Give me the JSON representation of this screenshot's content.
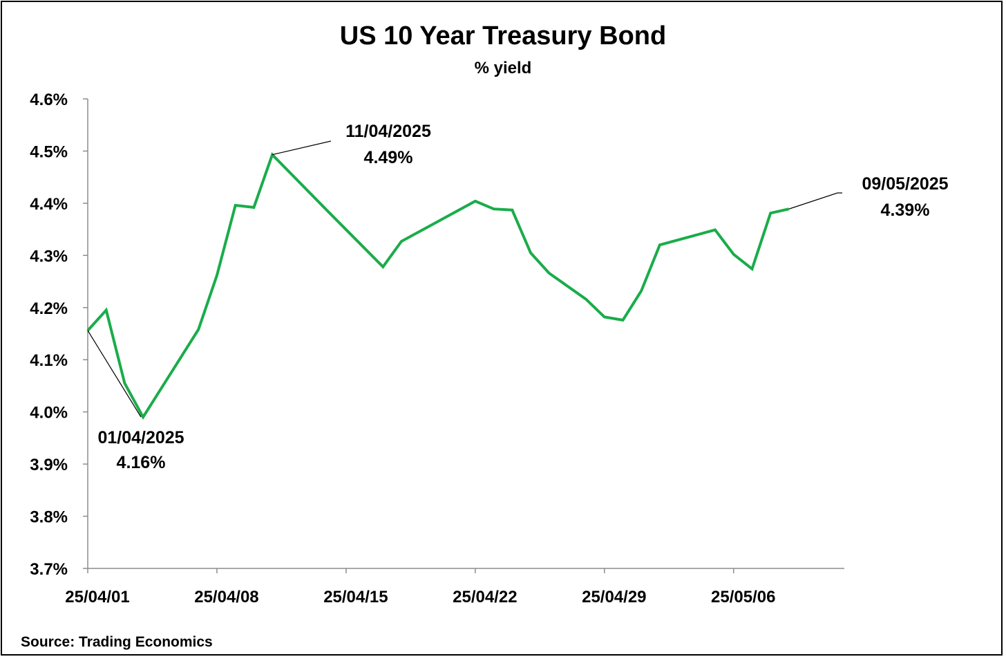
{
  "chart_data": {
    "type": "line",
    "title": "US 10 Year Treasury Bond",
    "subtitle": "% yield",
    "source": "Source: Trading Economics",
    "ylim": [
      3.7,
      4.6
    ],
    "yticks": [
      3.7,
      3.8,
      3.9,
      4.0,
      4.1,
      4.2,
      4.3,
      4.4,
      4.5,
      4.6
    ],
    "ytick_labels": [
      "3.7%",
      "3.8%",
      "3.9%",
      "4.0%",
      "4.1%",
      "4.2%",
      "4.3%",
      "4.4%",
      "4.5%",
      "4.6%"
    ],
    "xlim": [
      "2025-04-01",
      "2025-05-12"
    ],
    "xticks": [
      "2025-04-01",
      "2025-04-08",
      "2025-04-15",
      "2025-04-22",
      "2025-04-29",
      "2025-05-06"
    ],
    "xtick_labels": [
      "25/04/01",
      "25/04/08",
      "25/04/15",
      "25/04/22",
      "25/04/29",
      "25/05/06"
    ],
    "grid": false,
    "line_color": "#1aac4a",
    "series": [
      {
        "x": [
          "2025-04-01",
          "2025-04-02",
          "2025-04-03",
          "2025-04-04",
          "2025-04-07",
          "2025-04-08",
          "2025-04-09",
          "2025-04-10",
          "2025-04-11",
          "2025-04-14",
          "2025-04-17",
          "2025-04-18",
          "2025-04-22",
          "2025-04-23",
          "2025-04-24",
          "2025-04-25",
          "2025-04-26",
          "2025-04-28",
          "2025-04-29",
          "2025-04-30",
          "2025-05-01",
          "2025-05-02",
          "2025-05-05",
          "2025-05-06",
          "2025-05-07",
          "2025-05-08",
          "2025-05-09"
        ],
        "y": [
          4.156,
          4.195,
          4.055,
          3.99,
          4.158,
          4.262,
          4.396,
          4.392,
          4.493,
          4.385,
          4.278,
          4.327,
          4.404,
          4.389,
          4.387,
          4.305,
          4.266,
          4.216,
          4.182,
          4.176,
          4.232,
          4.32,
          4.349,
          4.302,
          4.274,
          4.381,
          4.389
        ]
      }
    ],
    "annotations": [
      {
        "date": "01/04/2025",
        "value": "4.16%",
        "x": "2025-04-01",
        "y": 4.156
      },
      {
        "date": "11/04/2025",
        "value": "4.49%",
        "x": "2025-04-11",
        "y": 4.493
      },
      {
        "date": "09/05/2025",
        "value": "4.39%",
        "x": "2025-05-09",
        "y": 4.389
      }
    ]
  }
}
